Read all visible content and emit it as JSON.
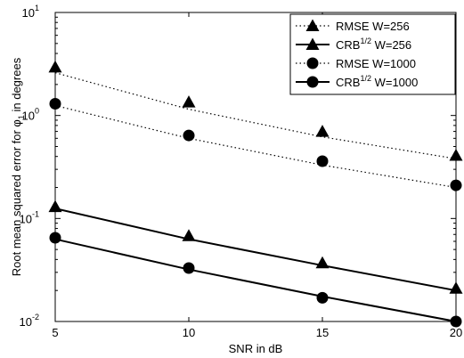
{
  "chart_data": {
    "type": "line",
    "title": "",
    "xlabel": "SNR in dB",
    "ylabel": {
      "prefix": "Root mean squared error for ",
      "symbol": "φ",
      "subscript": "1",
      "suffix": " in degrees"
    },
    "xscale": "linear",
    "yscale": "log",
    "xlim": [
      5,
      20
    ],
    "ylim": [
      0.01,
      10
    ],
    "x": [
      5,
      10,
      15,
      20
    ],
    "x_tick_labels": [
      "5",
      "10",
      "15",
      "20"
    ],
    "y_tick_labels": [
      {
        "value": 0.01,
        "base": "10",
        "exp": "-2"
      },
      {
        "value": 0.1,
        "base": "10",
        "exp": "-1"
      },
      {
        "value": 1,
        "base": "10",
        "exp": "0"
      },
      {
        "value": 10,
        "base": "10",
        "exp": "1"
      }
    ],
    "grid": false,
    "legend_position": "top-right",
    "series": [
      {
        "name": "RMSE W=256",
        "legend_parts": [
          "RMSE W=256"
        ],
        "line_style": "dotted",
        "marker": "triangle",
        "points": [
          2.95,
          1.35,
          0.7,
          0.41
        ],
        "line": [
          2.6,
          1.15,
          0.62,
          0.38
        ]
      },
      {
        "name": "CRB1/2 W=256",
        "legend_parts": [
          "CRB",
          "1/2",
          " W=256"
        ],
        "line_style": "solid",
        "marker": "triangle",
        "points": [
          0.13,
          0.068,
          0.037,
          0.021
        ],
        "line": [
          0.125,
          0.063,
          0.035,
          0.02
        ]
      },
      {
        "name": "RMSE W=1000",
        "legend_parts": [
          "RMSE W=1000"
        ],
        "line_style": "dotted",
        "marker": "circle",
        "points": [
          1.3,
          0.64,
          0.36,
          0.21
        ],
        "line": [
          1.25,
          0.6,
          0.33,
          0.2
        ]
      },
      {
        "name": "CRB1/2 W=1000",
        "legend_parts": [
          "CRB",
          "1/2",
          " W=1000"
        ],
        "line_style": "solid",
        "marker": "circle",
        "points": [
          0.065,
          0.033,
          0.017,
          0.01
        ],
        "line": [
          0.063,
          0.032,
          0.0175,
          0.01
        ]
      }
    ]
  }
}
